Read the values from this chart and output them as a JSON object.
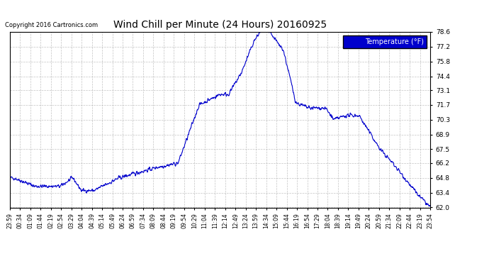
{
  "title": "Wind Chill per Minute (24 Hours) 20160925",
  "copyright": "Copyright 2016 Cartronics.com",
  "legend_label": "Temperature (°F)",
  "ylim": [
    62.0,
    78.6
  ],
  "yticks": [
    62.0,
    63.4,
    64.8,
    66.2,
    67.5,
    68.9,
    70.3,
    71.7,
    73.1,
    74.4,
    75.8,
    77.2,
    78.6
  ],
  "line_color": "#0000cc",
  "legend_bg": "#0000cc",
  "legend_text_color": "#ffffff",
  "bg_color": "#ffffff",
  "grid_color": "#aaaaaa",
  "title_color": "#000000",
  "x_labels": [
    "23:59",
    "00:34",
    "01:09",
    "01:44",
    "02:19",
    "02:54",
    "03:29",
    "04:04",
    "04:39",
    "05:14",
    "05:49",
    "06:24",
    "06:59",
    "07:34",
    "08:09",
    "08:44",
    "09:19",
    "09:54",
    "10:29",
    "11:04",
    "11:39",
    "12:14",
    "12:49",
    "13:24",
    "13:59",
    "14:34",
    "15:09",
    "15:44",
    "16:19",
    "16:54",
    "17:29",
    "18:04",
    "18:39",
    "19:14",
    "19:49",
    "20:24",
    "20:59",
    "21:34",
    "22:09",
    "22:44",
    "23:19",
    "23:54"
  ]
}
